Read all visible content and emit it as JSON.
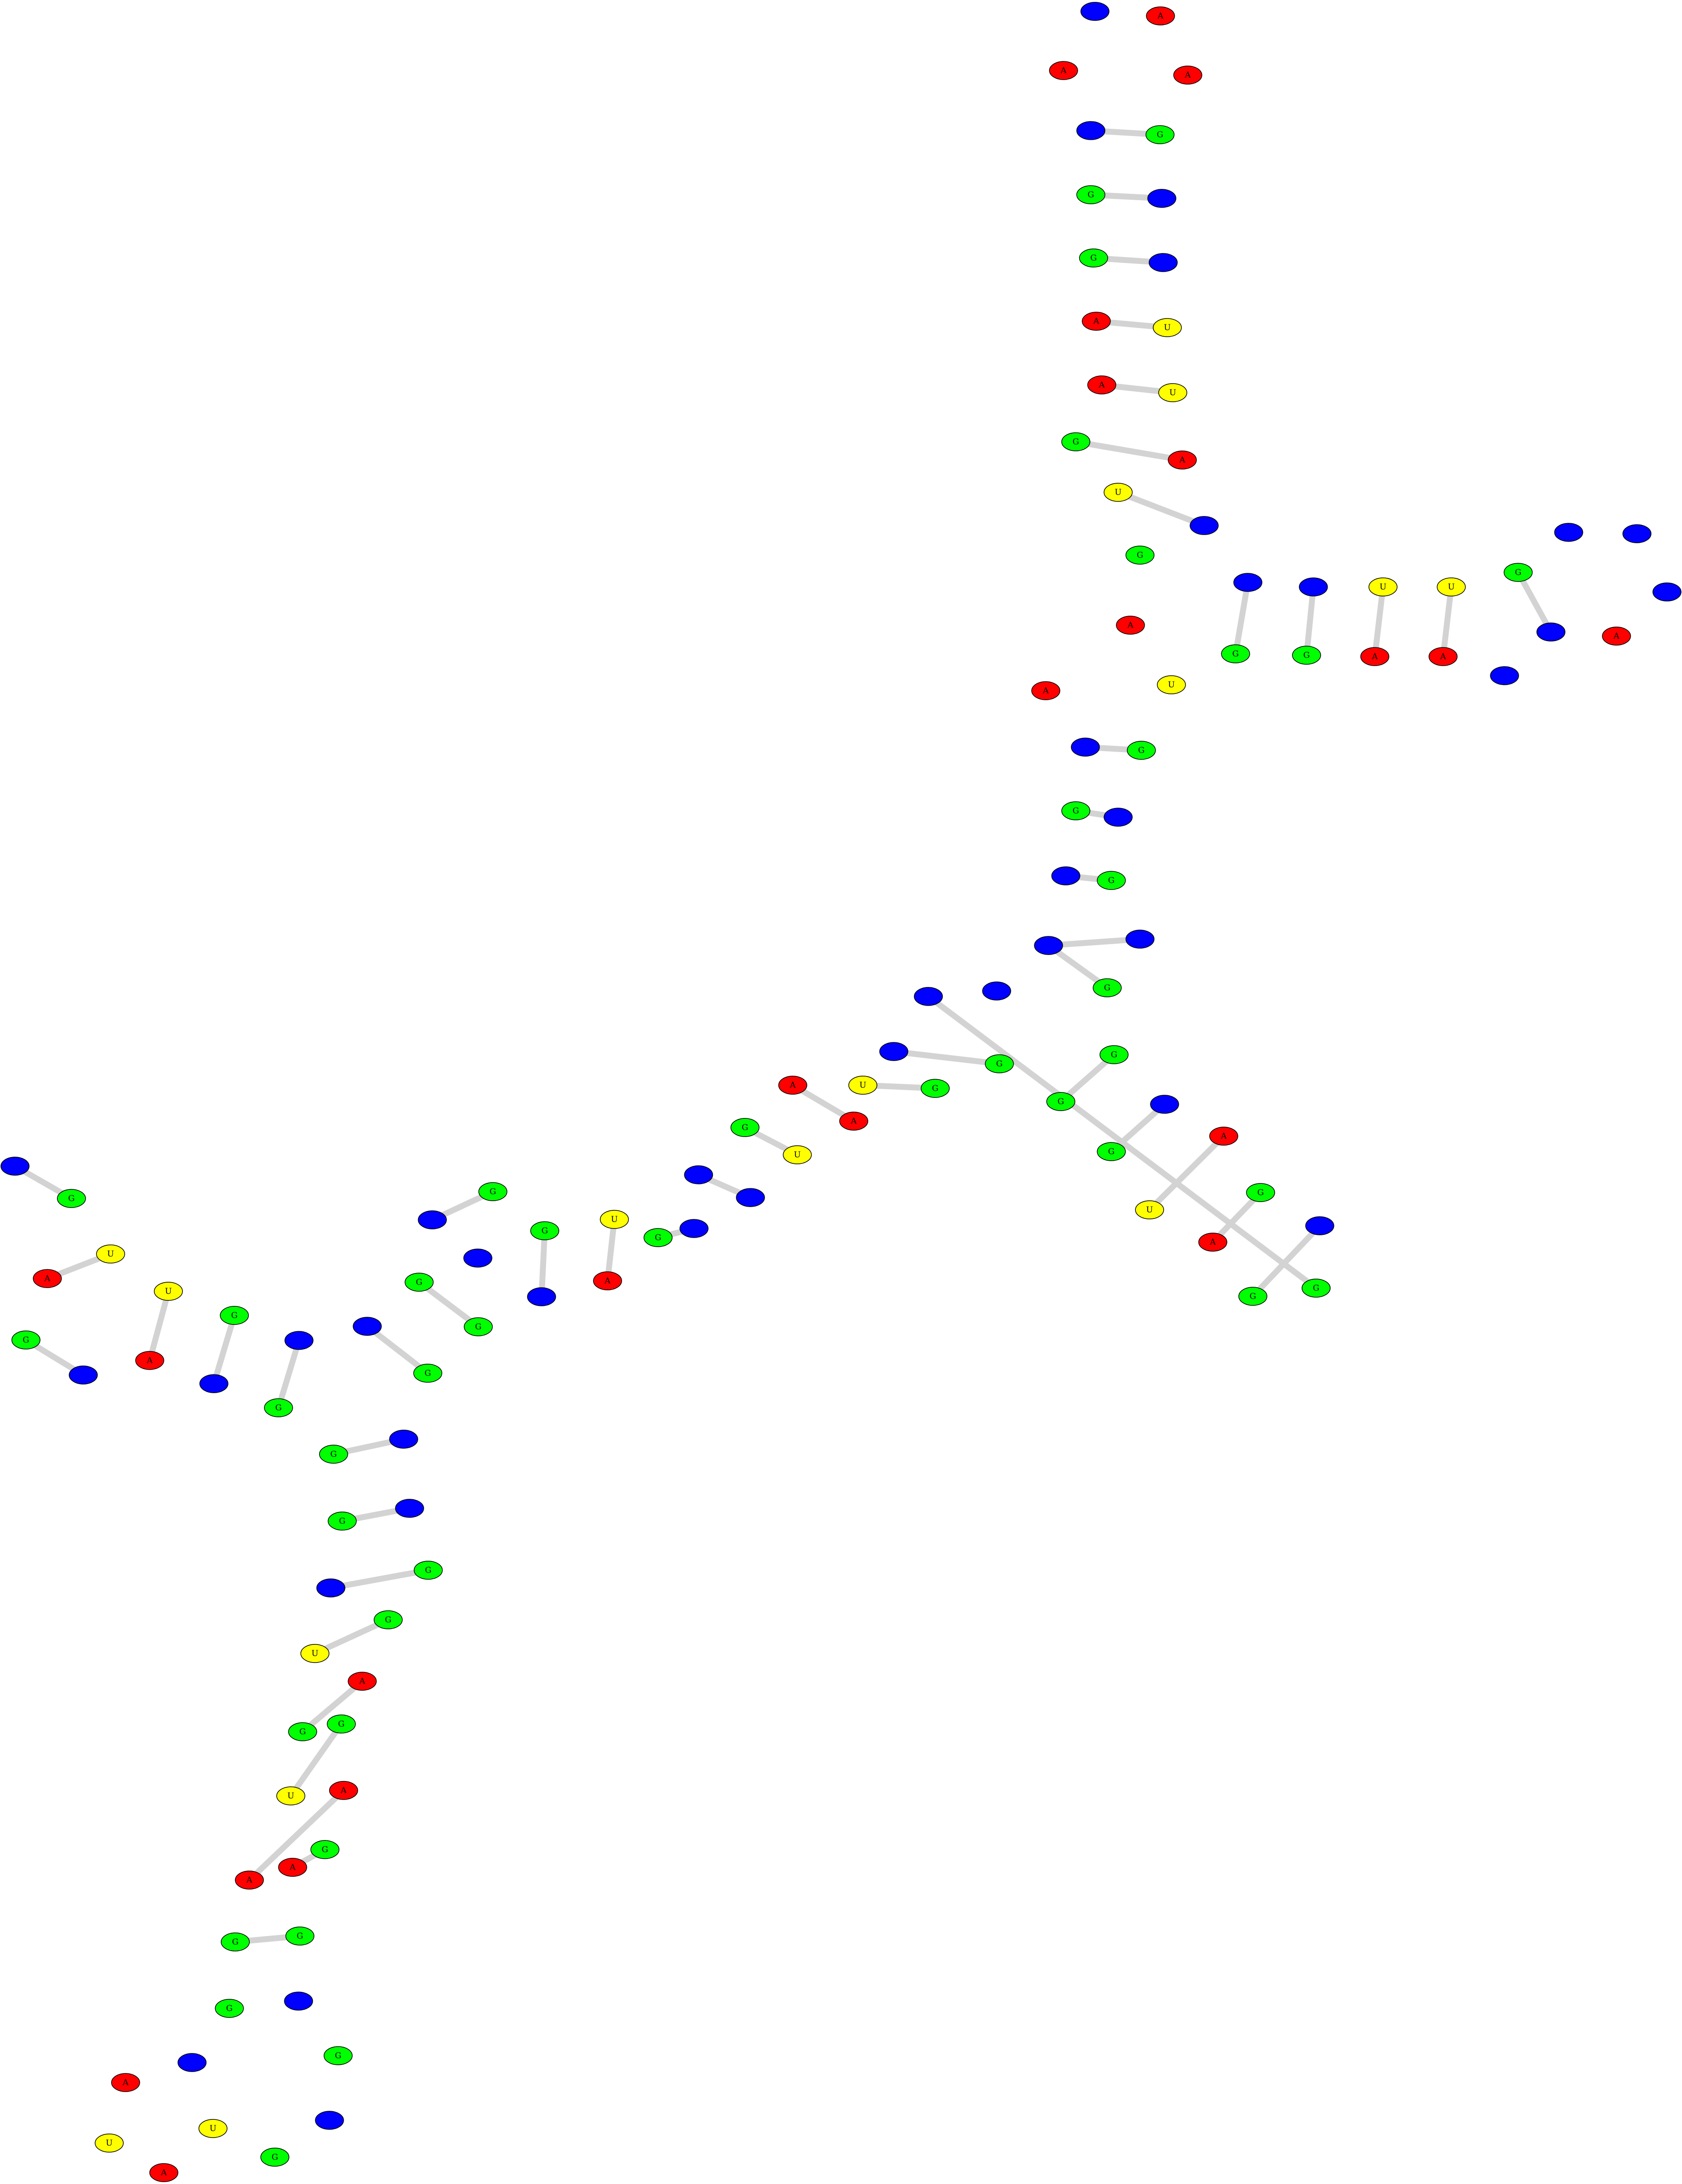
{
  "colors": {
    "A": "#ff0000",
    "C": "#0000ff",
    "G": "#00ff00",
    "U": "#ffff00",
    "bond": "#d3d3d3"
  },
  "nucleotides": [
    {
      "id": 1,
      "base": "C",
      "label": ""
    },
    {
      "id": 2,
      "base": "A",
      "label": "A"
    },
    {
      "id": 3,
      "base": "A",
      "label": "A"
    },
    {
      "id": 4,
      "base": "A",
      "label": "A"
    },
    {
      "id": 5,
      "base": "C",
      "label": ""
    },
    {
      "id": 6,
      "base": "G",
      "label": "G"
    },
    {
      "id": 7,
      "base": "G",
      "label": "G"
    },
    {
      "id": 8,
      "base": "C",
      "label": ""
    },
    {
      "id": 9,
      "base": "G",
      "label": "G"
    },
    {
      "id": 10,
      "base": "C",
      "label": ""
    },
    {
      "id": 11,
      "base": "A",
      "label": "A"
    },
    {
      "id": 12,
      "base": "U",
      "label": "U"
    },
    {
      "id": 13,
      "base": "A",
      "label": "A"
    },
    {
      "id": 14,
      "base": "U",
      "label": "U"
    },
    {
      "id": 15,
      "base": "G",
      "label": "G"
    },
    {
      "id": 16,
      "base": "A",
      "label": "A"
    },
    {
      "id": 17,
      "base": "U",
      "label": "U"
    },
    {
      "id": 18,
      "base": "C",
      "label": ""
    },
    {
      "id": 19,
      "base": "G",
      "label": "G"
    },
    {
      "id": 20,
      "base": "C",
      "label": ""
    },
    {
      "id": 21,
      "base": "G",
      "label": "G"
    },
    {
      "id": 22,
      "base": "C",
      "label": ""
    },
    {
      "id": 23,
      "base": "G",
      "label": "G"
    },
    {
      "id": 24,
      "base": "U",
      "label": "U"
    },
    {
      "id": 25,
      "base": "A",
      "label": "A"
    },
    {
      "id": 26,
      "base": "U",
      "label": "U"
    },
    {
      "id": 27,
      "base": "A",
      "label": "A"
    },
    {
      "id": 28,
      "base": "G",
      "label": "G"
    },
    {
      "id": 29,
      "base": "C",
      "label": ""
    },
    {
      "id": 30,
      "base": "C",
      "label": ""
    },
    {
      "id": 31,
      "base": "C",
      "label": ""
    },
    {
      "id": 32,
      "base": "C",
      "label": ""
    },
    {
      "id": 33,
      "base": "A",
      "label": "A"
    },
    {
      "id": 34,
      "base": "C",
      "label": ""
    },
    {
      "id": 35,
      "base": "A",
      "label": "A"
    },
    {
      "id": 36,
      "base": "A",
      "label": "A"
    },
    {
      "id": 37,
      "base": "U",
      "label": "U"
    },
    {
      "id": 38,
      "base": "C",
      "label": ""
    },
    {
      "id": 39,
      "base": "G",
      "label": "G"
    },
    {
      "id": 40,
      "base": "G",
      "label": "G"
    },
    {
      "id": 41,
      "base": "C",
      "label": ""
    },
    {
      "id": 42,
      "base": "C",
      "label": ""
    },
    {
      "id": 43,
      "base": "G",
      "label": "G"
    },
    {
      "id": 44,
      "base": "C",
      "label": ""
    },
    {
      "id": 45,
      "base": "G",
      "label": "G"
    },
    {
      "id": 46,
      "base": "C",
      "label": ""
    },
    {
      "id": 47,
      "base": "G",
      "label": "G"
    },
    {
      "id": 48,
      "base": "G",
      "label": "G"
    },
    {
      "id": 49,
      "base": "C",
      "label": ""
    },
    {
      "id": 50,
      "base": "G",
      "label": "G"
    },
    {
      "id": 51,
      "base": "A",
      "label": "A"
    },
    {
      "id": 52,
      "base": "U",
      "label": "U"
    },
    {
      "id": 53,
      "base": "G",
      "label": "G"
    },
    {
      "id": 54,
      "base": "A",
      "label": "A"
    },
    {
      "id": 55,
      "base": "C",
      "label": ""
    },
    {
      "id": 56,
      "base": "G",
      "label": "G"
    },
    {
      "id": 57,
      "base": "G",
      "label": "G"
    },
    {
      "id": 58,
      "base": "C",
      "label": ""
    },
    {
      "id": 59,
      "base": "C",
      "label": ""
    },
    {
      "id": 60,
      "base": "G",
      "label": "G"
    },
    {
      "id": 61,
      "base": "C",
      "label": ""
    },
    {
      "id": 62,
      "base": "G",
      "label": "G"
    },
    {
      "id": 63,
      "base": "U",
      "label": "U"
    },
    {
      "id": 64,
      "base": "A",
      "label": "A"
    },
    {
      "id": 65,
      "base": "A",
      "label": "A"
    },
    {
      "id": 66,
      "base": "U",
      "label": "U"
    },
    {
      "id": 67,
      "base": "G",
      "label": "G"
    },
    {
      "id": 68,
      "base": "C",
      "label": ""
    },
    {
      "id": 69,
      "base": "C",
      "label": ""
    },
    {
      "id": 70,
      "base": "G",
      "label": "G"
    },
    {
      "id": 71,
      "base": "C",
      "label": ""
    },
    {
      "id": 72,
      "base": "U",
      "label": "U"
    },
    {
      "id": 73,
      "base": "A",
      "label": "A"
    },
    {
      "id": 74,
      "base": "G",
      "label": "G"
    },
    {
      "id": 75,
      "base": "C",
      "label": ""
    },
    {
      "id": 76,
      "base": "G",
      "label": "G"
    },
    {
      "id": 77,
      "base": "C",
      "label": ""
    },
    {
      "id": 78,
      "base": "C",
      "label": ""
    },
    {
      "id": 79,
      "base": "G",
      "label": "G"
    },
    {
      "id": 80,
      "base": "G",
      "label": "G"
    },
    {
      "id": 81,
      "base": "C",
      "label": ""
    },
    {
      "id": 82,
      "base": "G",
      "label": "G"
    },
    {
      "id": 83,
      "base": "C",
      "label": ""
    },
    {
      "id": 84,
      "base": "G",
      "label": "G"
    },
    {
      "id": 85,
      "base": "G",
      "label": "G"
    },
    {
      "id": 86,
      "base": "C",
      "label": ""
    },
    {
      "id": 87,
      "base": "U",
      "label": "U"
    },
    {
      "id": 88,
      "base": "A",
      "label": "A"
    },
    {
      "id": 89,
      "base": "U",
      "label": "U"
    },
    {
      "id": 90,
      "base": "A",
      "label": "A"
    },
    {
      "id": 91,
      "base": "G",
      "label": "G"
    },
    {
      "id": 92,
      "base": "C",
      "label": ""
    },
    {
      "id": 93,
      "base": "G",
      "label": "G"
    },
    {
      "id": 94,
      "base": "C",
      "label": ""
    },
    {
      "id": 95,
      "base": "G",
      "label": "G"
    },
    {
      "id": 96,
      "base": "C",
      "label": ""
    },
    {
      "id": 97,
      "base": "G",
      "label": "G"
    },
    {
      "id": 98,
      "base": "C",
      "label": ""
    },
    {
      "id": 99,
      "base": "G",
      "label": "G"
    },
    {
      "id": 100,
      "base": "C",
      "label": ""
    },
    {
      "id": 101,
      "base": "G",
      "label": "G"
    },
    {
      "id": 102,
      "base": "U",
      "label": "U"
    },
    {
      "id": 103,
      "base": "A",
      "label": "A"
    },
    {
      "id": 104,
      "base": "G",
      "label": "G"
    },
    {
      "id": 105,
      "base": "G",
      "label": "G"
    },
    {
      "id": 106,
      "base": "U",
      "label": "U"
    },
    {
      "id": 107,
      "base": "A",
      "label": "A"
    },
    {
      "id": 108,
      "base": "A",
      "label": "A"
    },
    {
      "id": 109,
      "base": "A",
      "label": "A"
    },
    {
      "id": 110,
      "base": "G",
      "label": "G"
    },
    {
      "id": 111,
      "base": "G",
      "label": "G"
    },
    {
      "id": 112,
      "base": "G",
      "label": "G"
    },
    {
      "id": 113,
      "base": "G",
      "label": "G"
    },
    {
      "id": 114,
      "base": "C",
      "label": ""
    },
    {
      "id": 115,
      "base": "C",
      "label": ""
    },
    {
      "id": 116,
      "base": "U",
      "label": "U"
    },
    {
      "id": 117,
      "base": "A",
      "label": "A"
    },
    {
      "id": 118,
      "base": "U",
      "label": "U"
    },
    {
      "id": 119,
      "base": "A",
      "label": "A"
    },
    {
      "id": 120,
      "base": "G",
      "label": "G"
    },
    {
      "id": 121,
      "base": "C",
      "label": ""
    },
    {
      "id": 122,
      "base": "G",
      "label": "G"
    },
    {
      "id": 123,
      "base": "C",
      "label": ""
    },
    {
      "id": 124,
      "base": "G",
      "label": "G"
    },
    {
      "id": 125,
      "base": "C",
      "label": ""
    },
    {
      "id": 126,
      "base": "G",
      "label": "G"
    },
    {
      "id": 127,
      "base": "C",
      "label": ""
    },
    {
      "id": 128,
      "base": "C",
      "label": ""
    },
    {
      "id": 129,
      "base": "G",
      "label": "G"
    },
    {
      "id": 130,
      "base": "G",
      "label": "G"
    },
    {
      "id": 131,
      "base": "C",
      "label": ""
    },
    {
      "id": 132,
      "base": "G",
      "label": "G"
    },
    {
      "id": 133,
      "base": "G",
      "label": "G"
    },
    {
      "id": 134,
      "base": "C",
      "label": ""
    },
    {
      "id": 135,
      "base": "G",
      "label": "G"
    },
    {
      "id": 136,
      "base": "C",
      "label": ""
    },
    {
      "id": 137,
      "base": "A",
      "label": "A"
    },
    {
      "id": 138,
      "base": "U",
      "label": "U"
    },
    {
      "id": 139,
      "base": "G",
      "label": "G"
    },
    {
      "id": 140,
      "base": "C",
      "label": ""
    },
    {
      "id": 141,
      "base": "A",
      "label": "A"
    },
    {
      "id": 142,
      "base": "U",
      "label": "U"
    },
    {
      "id": 143,
      "base": "A",
      "label": "A"
    },
    {
      "id": 144,
      "base": "A",
      "label": "A"
    },
    {
      "id": 145,
      "base": "U",
      "label": "U"
    },
    {
      "id": 146,
      "base": "G",
      "label": "G"
    },
    {
      "id": 147,
      "base": "G",
      "label": "G"
    },
    {
      "id": 148,
      "base": "C",
      "label": ""
    },
    {
      "id": 149,
      "base": "G",
      "label": "G"
    },
    {
      "id": 150,
      "base": "C",
      "label": ""
    }
  ],
  "base_pairs": [
    [
      5,
      24
    ],
    [
      6,
      23
    ],
    [
      7,
      22
    ],
    [
      8,
      21
    ],
    [
      9,
      20
    ],
    [
      10,
      19
    ],
    [
      11,
      18
    ],
    [
      12,
      17
    ],
    [
      30,
      49
    ],
    [
      31,
      48
    ],
    [
      32,
      47
    ],
    [
      33,
      46
    ],
    [
      34,
      45
    ],
    [
      35,
      44
    ],
    [
      36,
      43
    ],
    [
      37,
      42
    ],
    [
      55,
      74
    ],
    [
      56,
      73
    ],
    [
      57,
      72
    ],
    [
      58,
      71
    ],
    [
      59,
      70
    ],
    [
      60,
      69
    ],
    [
      61,
      68
    ],
    [
      62,
      67
    ],
    [
      80,
      99
    ],
    [
      81,
      98
    ],
    [
      82,
      97
    ],
    [
      83,
      96
    ],
    [
      84,
      95
    ],
    [
      85,
      94
    ],
    [
      86,
      93
    ],
    [
      87,
      92
    ],
    [
      105,
      124
    ],
    [
      106,
      123
    ],
    [
      107,
      122
    ],
    [
      108,
      121
    ],
    [
      109,
      120
    ],
    [
      110,
      119
    ],
    [
      111,
      118
    ],
    [
      112,
      117
    ],
    [
      128,
      149
    ],
    [
      129,
      148
    ],
    [
      130,
      147
    ],
    [
      131,
      146
    ],
    [
      132,
      145
    ],
    [
      133,
      144
    ],
    [
      134,
      143
    ],
    [
      135,
      142
    ]
  ]
}
